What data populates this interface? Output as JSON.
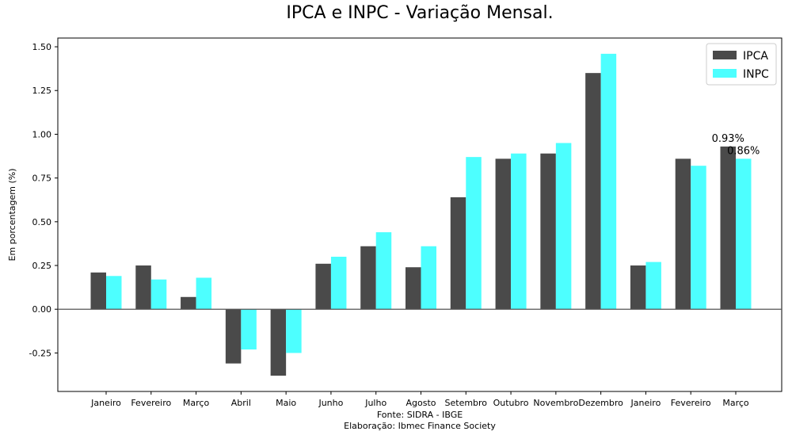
{
  "chart_data": {
    "type": "bar",
    "title": "IPCA e INPC - Variação Mensal.",
    "ylabel": "Em porcentagem (%)",
    "xlabel": "",
    "categories": [
      "Janeiro",
      "Fevereiro",
      "Março",
      "Abril",
      "Maio",
      "Junho",
      "Julho",
      "Agosto",
      "Setembro",
      "Outubro",
      "Novembro",
      "Dezembro",
      "Janeiro",
      "Fevereiro",
      "Março"
    ],
    "series": [
      {
        "name": "IPCA",
        "color": "#4a4a4a",
        "values": [
          0.21,
          0.25,
          0.07,
          -0.31,
          -0.38,
          0.26,
          0.36,
          0.24,
          0.64,
          0.86,
          0.89,
          1.35,
          0.25,
          0.86,
          0.93
        ]
      },
      {
        "name": "INPC",
        "color": "#4dffff",
        "values": [
          0.19,
          0.17,
          0.18,
          -0.23,
          -0.25,
          0.3,
          0.44,
          0.36,
          0.87,
          0.89,
          0.95,
          1.46,
          0.27,
          0.82,
          0.86
        ]
      }
    ],
    "ylim": [
      -0.47,
      1.55
    ],
    "yticks": [
      "1.50",
      "1.25",
      "1.00",
      "0.75",
      "0.50",
      "0.25",
      "0.00",
      "-0.25"
    ],
    "annotations": [
      {
        "text": "0.93%",
        "series": 0,
        "index": 14
      },
      {
        "text": "0.86%",
        "series": 1,
        "index": 14
      }
    ],
    "legend": "top-right",
    "grid": false
  },
  "footer": {
    "source": "Fonte: SIDRA - IBGE",
    "credit": "Elaboração: Ibmec Finance Society"
  }
}
